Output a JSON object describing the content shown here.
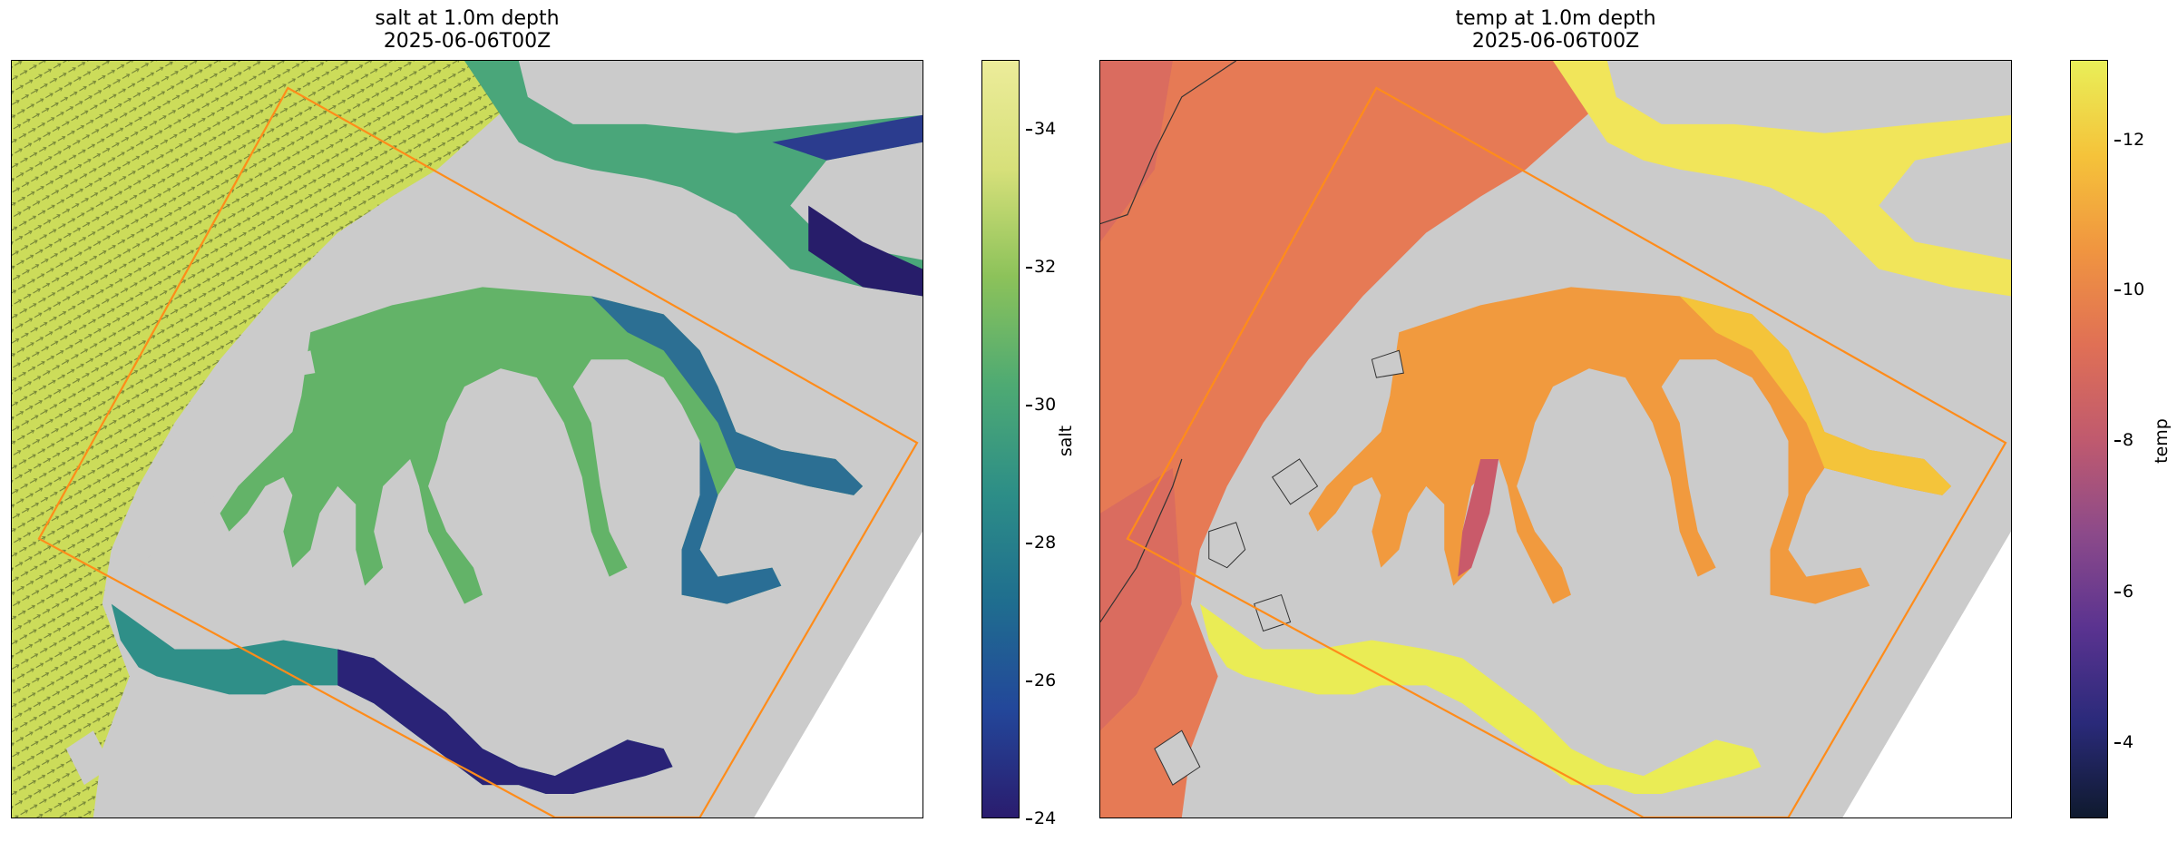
{
  "left": {
    "title_line1": "salt at 1.0m depth",
    "title_line2": "2025-06-06T00Z",
    "colorbar": {
      "label": "salt",
      "ticks": [
        "34",
        "32",
        "30",
        "28",
        "26",
        "24"
      ],
      "range": [
        24,
        35
      ],
      "colormap": "haline",
      "colors": [
        "#2a1c6e",
        "#23479a",
        "#1f6e8f",
        "#2d8e87",
        "#4eaa73",
        "#8cc25a",
        "#d7e07a",
        "#ecec9a"
      ]
    }
  },
  "right": {
    "title_line1": "temp at 1.0m depth",
    "title_line2": "2025-06-06T00Z",
    "colorbar": {
      "label": "temp",
      "ticks": [
        "12",
        "10",
        "8",
        "6",
        "4"
      ],
      "range": [
        3,
        13
      ],
      "colormap": "thermal",
      "colors": [
        "#0f1a2e",
        "#2a2a7a",
        "#5a3390",
        "#8c4a8a",
        "#c05a6e",
        "#e07055",
        "#f09540",
        "#f5c33a",
        "#e9ef58"
      ]
    }
  },
  "colors": {
    "land": "#cbcbcb",
    "domain_box": "#ff8c1a",
    "frame": "#000000"
  }
}
